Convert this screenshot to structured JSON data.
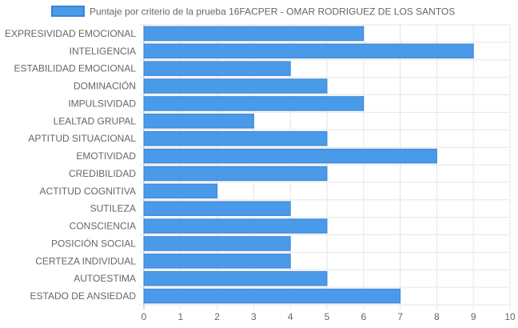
{
  "chart_data": {
    "type": "bar",
    "orientation": "horizontal",
    "categories": [
      "EXPRESIVIDAD EMOCIONAL",
      "INTELIGENCIA",
      "ESTABILIDAD EMOCIONAL",
      "DOMINACIÓN",
      "IMPULSIVIDAD",
      "LEALTAD GRUPAL",
      "APTITUD SITUACIONAL",
      "EMOTIVIDAD",
      "CREDIBILIDAD",
      "ACTITUD COGNITIVA",
      "SUTILEZA",
      "CONSCIENCIA",
      "POSICIÓN SOCIAL",
      "CERTEZA INDIVIDUAL",
      "AUTOESTIMA",
      "ESTADO DE ANSIEDAD"
    ],
    "series": [
      {
        "name": "Puntaje por criterio de la prueba 16FACPER - OMAR RODRIGUEZ DE LOS SANTOS",
        "values": [
          6,
          9,
          4,
          5,
          6,
          3,
          5,
          8,
          5,
          2,
          4,
          5,
          4,
          4,
          5,
          7
        ],
        "color": "#4a9aea",
        "border_color": "#3b82d6"
      }
    ],
    "xlim": [
      0,
      10
    ],
    "xticks": [
      "0",
      "1",
      "2",
      "3",
      "4",
      "5",
      "6",
      "7",
      "8",
      "9",
      "10"
    ],
    "grid": true,
    "legend_position": "top"
  }
}
